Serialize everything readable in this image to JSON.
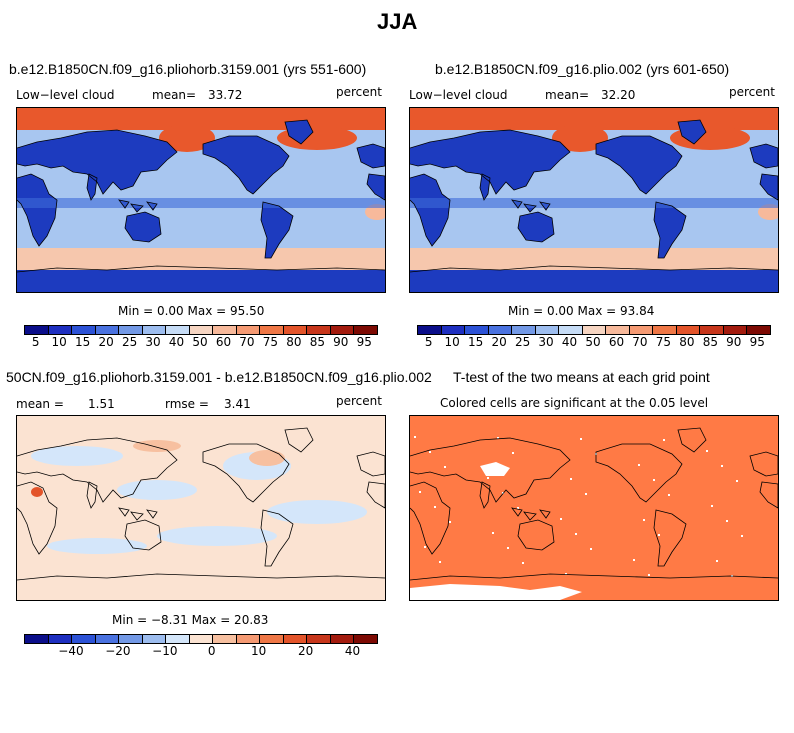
{
  "figure": {
    "title": "JJA"
  },
  "panels": [
    {
      "title": "b.e12.B1850CN.f09_g16.pliohorb.3159.001 (yrs 551-600)",
      "left_label": "Low−level cloud",
      "mean_label": "mean=",
      "mean_value": "33.72",
      "units": "percent",
      "minmax": "Min =    0.00 Max =   95.50"
    },
    {
      "title": "b.e12.B1850CN.f09_g16.plio.002 (yrs 601-650)",
      "left_label": "Low−level cloud",
      "mean_label": "mean=",
      "mean_value": "32.20",
      "units": "percent",
      "minmax": "Min =    0.00 Max =   93.84"
    },
    {
      "title": "50CN.f09_g16.pliohorb.3159.001 - b.e12.B1850CN.f09_g16.plio.002",
      "mean_label": "mean =",
      "mean_value": "1.51",
      "rmse_label": "rmse =",
      "rmse_value": "3.41",
      "units": "percent",
      "minmax": "Min =  −8.31 Max =   20.83"
    },
    {
      "title": "T-test of the two means at each grid point",
      "subtitle": "Colored cells are significant at the 0.05 level"
    }
  ],
  "colorbars": {
    "cloud": {
      "colors": [
        "#0b0e8a",
        "#1e2fc0",
        "#2c52d6",
        "#4a72e0",
        "#7399e6",
        "#9dbdef",
        "#c6dcf6",
        "#f6d5c2",
        "#f7b99b",
        "#f59a73",
        "#ef7746",
        "#e3542a",
        "#c7361b",
        "#a31b0e",
        "#7d0a03"
      ],
      "ticks": [
        "5",
        "10",
        "15",
        "20",
        "25",
        "30",
        "40",
        "50",
        "60",
        "70",
        "75",
        "80",
        "85",
        "90",
        "95"
      ]
    },
    "diff": {
      "colors": [
        "#0b0e8a",
        "#1e2fc0",
        "#2c52d6",
        "#4a72e0",
        "#7399e6",
        "#9dbdef",
        "#d4e6fa",
        "#fbe3d2",
        "#f7c0a0",
        "#f59a73",
        "#ef7746",
        "#e3542a",
        "#c7361b",
        "#a31b0e",
        "#7d0a03"
      ],
      "ticks": [
        "−40",
        "−20",
        "−10",
        "0",
        "10",
        "20",
        "40"
      ]
    }
  },
  "map_colors": {
    "deep_blue": "#1d3bbf",
    "mid_blue": "#3e6ad8",
    "light_blue": "#a8c6f0",
    "pale_blue": "#d4e6fa",
    "pale_red": "#fbe3d2",
    "red": "#e8582c",
    "orange_sig": "#ff7a45"
  }
}
